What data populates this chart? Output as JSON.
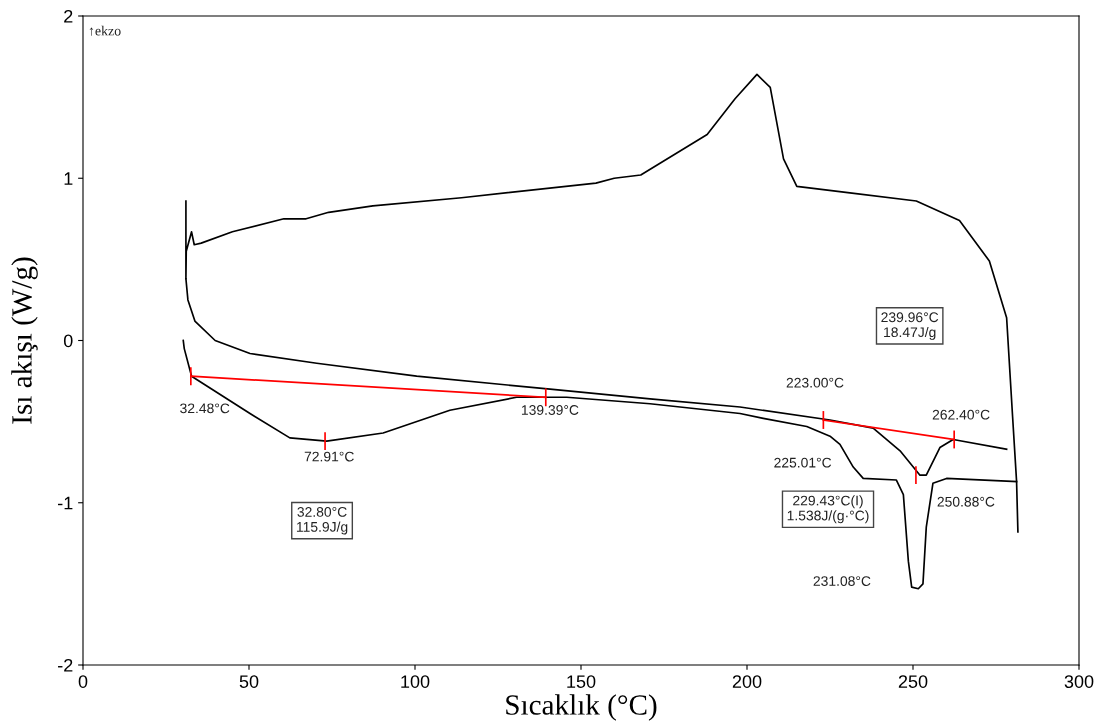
{
  "chart_data": {
    "type": "line",
    "xlabel": "Sıcaklık (°C)",
    "ylabel": "Isı akışı (W/g)",
    "xlim": [
      0,
      300
    ],
    "ylim": [
      -2,
      2
    ],
    "xticks": [
      0,
      50,
      100,
      150,
      200,
      250,
      300
    ],
    "yticks": [
      -2,
      -1,
      0,
      1,
      2
    ],
    "grid": false,
    "legend": false,
    "marker": "none",
    "line_style": "solid",
    "series": [
      {
        "color": "#000000",
        "x": [
          31.0,
          31.0,
          31.1,
          32.7,
          33.5,
          35.6,
          45.0,
          60.5,
          67.2,
          74.0,
          87.3,
          114.0,
          154.5,
          160.0,
          168.0,
          188.0,
          196.4,
          203.0,
          207.0,
          211.0,
          215.0,
          231.0,
          251.0,
          264.0,
          273.0,
          278.2,
          280.0,
          281.2,
          281.6
        ],
        "values": [
          0.86,
          0.38,
          0.55,
          0.67,
          0.59,
          0.6,
          0.67,
          0.75,
          0.75,
          0.79,
          0.83,
          0.88,
          0.97,
          1.0,
          1.02,
          1.27,
          1.49,
          1.64,
          1.56,
          1.12,
          0.95,
          0.91,
          0.86,
          0.74,
          0.49,
          0.14,
          -0.47,
          -0.87,
          -1.18
        ]
      },
      {
        "color": "#000000",
        "x": [
          31.0,
          31.6,
          33.7,
          39.8,
          50.3,
          70.4,
          100.5,
          140.7,
          170.8,
          197.9,
          225.0,
          238.0,
          246.1,
          252.1,
          254.0,
          258.1,
          262.1,
          278.2
        ],
        "values": [
          0.38,
          0.25,
          0.12,
          0.0,
          -0.08,
          -0.14,
          -0.22,
          -0.3,
          -0.36,
          -0.41,
          -0.49,
          -0.54,
          -0.68,
          -0.83,
          -0.83,
          -0.66,
          -0.61,
          -0.67
        ]
      },
      {
        "color": "#000000",
        "x": [
          30.2,
          30.5,
          32.7,
          50.3,
          62.3,
          73.4,
          90.4,
          110.5,
          130.6,
          145.7,
          170.8,
          197.9,
          204.9,
          218.0,
          225.0,
          228.0,
          232.0,
          235.0,
          245.0,
          247.1,
          248.6,
          249.6,
          251.6,
          253.0,
          254.0,
          256.0,
          260.1,
          281.2
        ],
        "values": [
          0.0,
          -0.05,
          -0.22,
          -0.45,
          -0.6,
          -0.62,
          -0.57,
          -0.43,
          -0.35,
          -0.35,
          -0.39,
          -0.45,
          -0.48,
          -0.53,
          -0.59,
          -0.64,
          -0.78,
          -0.85,
          -0.86,
          -0.95,
          -1.36,
          -1.52,
          -1.53,
          -1.5,
          -1.15,
          -0.88,
          -0.85,
          -0.87
        ]
      },
      {
        "color": "#ff0000",
        "x": [
          32.48,
          139.39
        ],
        "values": [
          -0.22,
          -0.35
        ]
      },
      {
        "color": "#ff0000",
        "x": [
          223.0,
          262.4
        ],
        "values": [
          -0.49,
          -0.61
        ]
      }
    ],
    "annotations": [
      "↑ekzo",
      {
        "text": "32.48°C",
        "x": 32.48,
        "y": -0.22
      },
      {
        "text": "139.39°C",
        "x": 139.39,
        "y": -0.35
      },
      {
        "text": "72.91°C",
        "x": 72.91,
        "y": -0.62
      },
      {
        "text": "223.00°C",
        "x": 223.0,
        "y": -0.49
      },
      {
        "text": "262.40°C",
        "x": 262.4,
        "y": -0.61
      },
      {
        "text": "250.88°C",
        "x": 250.88,
        "y": -0.83
      },
      "225.01°C",
      "231.08°C",
      "32.80°C\n115.9J/g",
      "239.96°C\n18.47J/g",
      "229.43°C(I)\n1.538J/(g·°C)"
    ]
  }
}
